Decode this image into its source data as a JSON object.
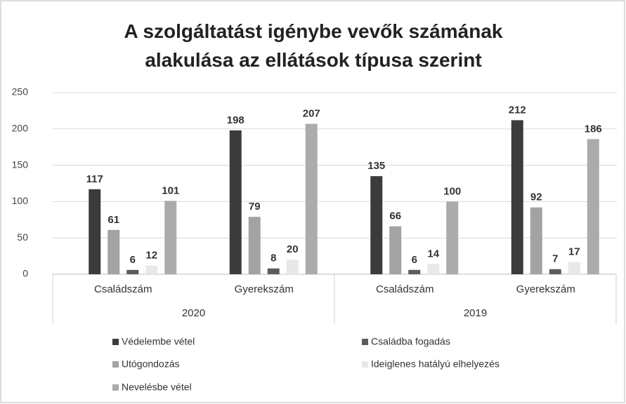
{
  "chart_data": {
    "type": "bar",
    "title": "A szolgáltatást igénybe vevők számának alakulása az ellátások típusa szerint",
    "categories": [
      "Családszám",
      "Gyerekszám",
      "Családszám",
      "Gyerekszám"
    ],
    "category_groups": [
      "2020",
      "2019"
    ],
    "series": [
      {
        "name": "Védelembe vétel",
        "color": "#3b3b3b",
        "values": [
          117,
          198,
          135,
          212
        ]
      },
      {
        "name": "Utógondozás",
        "color": "#a3a3a3",
        "values": [
          61,
          79,
          66,
          92
        ]
      },
      {
        "name": "Családba fogadás",
        "color": "#5c5c5c",
        "values": [
          6,
          8,
          6,
          7
        ]
      },
      {
        "name": "Ideiglenes hatályú elhelyezés",
        "color": "#e8e8e8",
        "values": [
          12,
          20,
          14,
          17
        ]
      },
      {
        "name": "Nevelésbe vétel",
        "color": "#ababab",
        "values": [
          101,
          207,
          100,
          186
        ]
      }
    ],
    "ylim": [
      0,
      250
    ],
    "yticks": [
      0,
      50,
      100,
      150,
      200,
      250
    ],
    "grid": true,
    "legend": "bottom"
  }
}
